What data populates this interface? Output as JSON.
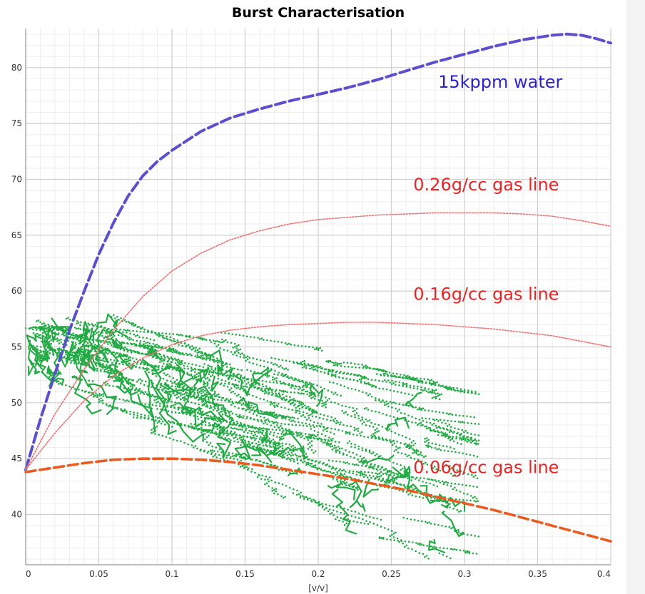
{
  "chart_data": {
    "type": "line",
    "title": "Burst Characterisation",
    "xlabel": "[v/v]",
    "ylabel": "",
    "xlim": [
      0,
      0.4
    ],
    "ylim": [
      35.5,
      83.5
    ],
    "x_ticks": [
      0,
      0.05,
      0.1,
      0.15,
      0.2,
      0.25,
      0.3,
      0.35,
      0.4
    ],
    "y_ticks": [
      40,
      45,
      50,
      55,
      60,
      65,
      70,
      75,
      80
    ],
    "grid": true,
    "series": [
      {
        "name": "15kppm water",
        "color": "#5b4fd1",
        "style": "dashed",
        "x": [
          0,
          0.01,
          0.02,
          0.03,
          0.04,
          0.05,
          0.06,
          0.07,
          0.08,
          0.09,
          0.1,
          0.12,
          0.14,
          0.16,
          0.18,
          0.2,
          0.22,
          0.24,
          0.26,
          0.28,
          0.3,
          0.32,
          0.34,
          0.36,
          0.37,
          0.38,
          0.39,
          0.4
        ],
        "y": [
          44,
          48.5,
          52.6,
          56.5,
          60,
          63.3,
          66.1,
          68.5,
          70.3,
          71.6,
          72.6,
          74.3,
          75.5,
          76.3,
          77,
          77.6,
          78.2,
          78.9,
          79.7,
          80.5,
          81.2,
          81.9,
          82.5,
          82.9,
          83,
          82.9,
          82.6,
          82.2
        ]
      },
      {
        "name": "0.26g/cc gas line",
        "color": "#f07070",
        "style": "dotted",
        "x": [
          0,
          0.02,
          0.04,
          0.06,
          0.08,
          0.1,
          0.12,
          0.14,
          0.16,
          0.18,
          0.2,
          0.22,
          0.24,
          0.26,
          0.28,
          0.3,
          0.32,
          0.34,
          0.36,
          0.38,
          0.4
        ],
        "y": [
          44,
          49,
          53,
          56.5,
          59.5,
          61.8,
          63.4,
          64.6,
          65.4,
          66,
          66.4,
          66.6,
          66.8,
          66.9,
          67,
          67,
          67,
          66.9,
          66.7,
          66.3,
          65.8
        ]
      },
      {
        "name": "0.16g/cc gas line",
        "color": "#f07070",
        "style": "dotted",
        "x": [
          0,
          0.02,
          0.04,
          0.06,
          0.08,
          0.1,
          0.12,
          0.14,
          0.16,
          0.18,
          0.2,
          0.22,
          0.24,
          0.26,
          0.28,
          0.3,
          0.32,
          0.34,
          0.36,
          0.38,
          0.4
        ],
        "y": [
          44,
          47.3,
          50.2,
          52.4,
          54,
          55.2,
          56,
          56.5,
          56.8,
          57,
          57.1,
          57.2,
          57.2,
          57.1,
          57,
          56.8,
          56.6,
          56.3,
          56,
          55.5,
          55
        ]
      },
      {
        "name": "0.06g/cc gas line",
        "color": "#ec5a20",
        "style": "dashed",
        "x": [
          0,
          0.02,
          0.04,
          0.06,
          0.08,
          0.1,
          0.12,
          0.14,
          0.16,
          0.18,
          0.2,
          0.22,
          0.24,
          0.26,
          0.28,
          0.3,
          0.32,
          0.34,
          0.36,
          0.38,
          0.4
        ],
        "y": [
          43.8,
          44.2,
          44.6,
          44.9,
          45,
          45,
          44.9,
          44.7,
          44.4,
          44,
          43.6,
          43.2,
          42.7,
          42.2,
          41.6,
          41,
          40.4,
          39.7,
          39,
          38.3,
          37.6
        ]
      }
    ],
    "scatter": {
      "color": "#22aa44",
      "note_cloud": [
        {
          "x": 0.01,
          "y": 55.5
        },
        {
          "x": 0.02,
          "y": 55
        },
        {
          "x": 0.03,
          "y": 54.6
        },
        {
          "x": 0.05,
          "y": 54
        },
        {
          "x": 0.07,
          "y": 53.3
        },
        {
          "x": 0.09,
          "y": 52.5
        },
        {
          "x": 0.11,
          "y": 51.6
        },
        {
          "x": 0.13,
          "y": 50.8
        },
        {
          "x": 0.15,
          "y": 49.9
        },
        {
          "x": 0.17,
          "y": 49
        },
        {
          "x": 0.19,
          "y": 48
        },
        {
          "x": 0.21,
          "y": 47
        },
        {
          "x": 0.23,
          "y": 45.8
        },
        {
          "x": 0.25,
          "y": 44.5
        },
        {
          "x": 0.27,
          "y": 43
        },
        {
          "x": 0.29,
          "y": 41.5
        }
      ]
    },
    "annotations": [
      {
        "text": "15kppm water",
        "color": "#2a22d0",
        "x": 0.282,
        "y": 78.2
      },
      {
        "text": "0.26g/cc gas line",
        "color": "#ee2222",
        "x": 0.265,
        "y": 69.0
      },
      {
        "text": "0.16g/cc gas line",
        "color": "#ee2222",
        "x": 0.265,
        "y": 59.2
      },
      {
        "text": "0.06g/cc gas line",
        "color": "#ee2222",
        "x": 0.265,
        "y": 43.7
      }
    ],
    "colors": {
      "grid_major": "#cfcfcf",
      "grid_minor": "#eeeeee",
      "axis": "#999999"
    }
  }
}
